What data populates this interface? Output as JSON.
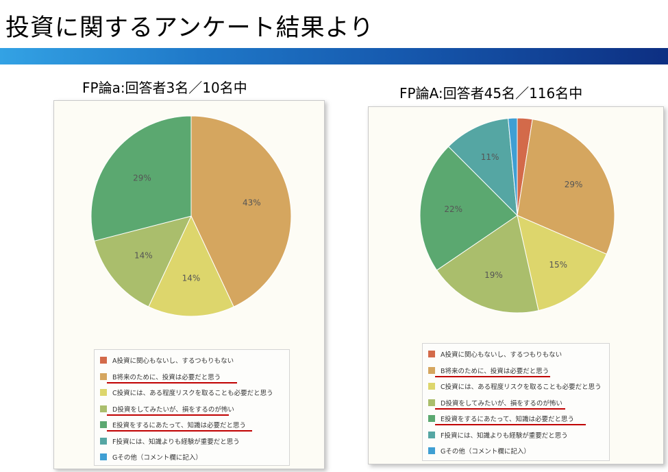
{
  "page": {
    "title": "投資に関するアンケート結果より"
  },
  "colors": {
    "A": "#d36a4a",
    "B": "#d5a65f",
    "C": "#ddd66c",
    "D": "#aabe6c",
    "E": "#5ba870",
    "F": "#55a6a3",
    "G": "#3f9fd3",
    "underline": "#c00000"
  },
  "legend_items": [
    "A投資に関心もないし、するつもりもない",
    "B将来のために、投資は必要だと思う",
    "C投資には、ある程度リスクを取ることも必要だと思う",
    "D投資をしてみたいが、損をするのが怖い",
    "E投資をするにあたって、知識は必要だと思う",
    "F投資には、知識よりも経験が重要だと思う",
    "Gその他（コメント欄に記入）"
  ],
  "chart_data": [
    {
      "type": "pie",
      "title": "FP論a:回答者3名／10名中",
      "categories": [
        "A",
        "B",
        "C",
        "D",
        "E",
        "F",
        "G"
      ],
      "values": [
        0,
        43,
        14,
        14,
        29,
        0,
        0
      ],
      "data_labels": [
        "",
        "43%",
        "14%",
        "14%",
        "29%",
        "",
        ""
      ],
      "legend": "bottom",
      "underlined_legend_items": [
        "B",
        "D",
        "E"
      ]
    },
    {
      "type": "pie",
      "title": "FP論A:回答者45名／116名中",
      "categories": [
        "A",
        "B",
        "C",
        "D",
        "E",
        "F",
        "G"
      ],
      "values": [
        2.5,
        29,
        15,
        19,
        22,
        11,
        1.5
      ],
      "data_labels": [
        "",
        "29%",
        "15%",
        "19%",
        "22%",
        "11%",
        ""
      ],
      "legend": "bottom",
      "underlined_legend_items": [
        "B",
        "D",
        "E"
      ]
    }
  ]
}
